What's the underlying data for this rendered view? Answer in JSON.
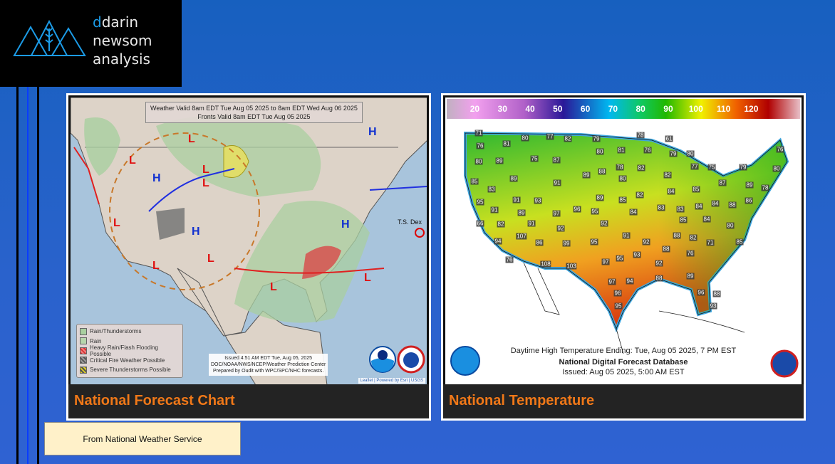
{
  "logo": {
    "line1": "darin",
    "line2": "newsom",
    "line3": "analysis",
    "accent": "#1c9be6"
  },
  "forecast": {
    "caption": "National Forecast Chart",
    "header_line1": "Weather Valid 8am EDT Tue Aug 05 2025 to 8am EDT Wed Aug 06 2025",
    "header_line2": "Fronts Valid 8am EDT Tue Aug 05 2025",
    "legend": [
      "Rain/Thunderstorms",
      "Rain",
      "Heavy Rain/Flash Flooding Possible",
      "Critical Fire Weather Possible",
      "Severe Thunderstorms Possible"
    ],
    "issued_line1": "Issued  4:51 AM EDT  Tue, Aug 05, 2025",
    "issued_line2": "DOC/NOAA/NWS/NCEP/Weather Prediction Center",
    "issued_line3": "Prepared by Oudit with WPC/SPC/NHC forecasts.",
    "attribution": "Leaflet | Powered by Esri | USGS",
    "storm_label": "T.S. Dex",
    "pressure_centers": [
      "L",
      "L",
      "L",
      "L",
      "L",
      "L",
      "L",
      "L",
      "L",
      "H",
      "H",
      "H",
      "H"
    ]
  },
  "temperature": {
    "caption": "National Temperature",
    "scale": [
      "20",
      "30",
      "40",
      "50",
      "60",
      "70",
      "80",
      "90",
      "100",
      "110",
      "120"
    ],
    "line1": "Daytime High Temperature Ending: Tue, Aug 05 2025, 7 PM EST",
    "line2": "National Digital Forecast Database",
    "line3": "Issued: Aug 05 2025, 5:00 AM EST",
    "values": [
      "71",
      "76",
      "80",
      "77",
      "82",
      "79",
      "78",
      "61",
      "81",
      "80",
      "81",
      "76",
      "79",
      "80",
      "80",
      "89",
      "75",
      "87",
      "78",
      "82",
      "77",
      "75",
      "79",
      "76",
      "80",
      "85",
      "89",
      "91",
      "89",
      "88",
      "80",
      "82",
      "87",
      "89",
      "83",
      "84",
      "85",
      "78",
      "95",
      "91",
      "93",
      "89",
      "85",
      "82",
      "84",
      "88",
      "86",
      "91",
      "89",
      "97",
      "96",
      "95",
      "84",
      "83",
      "83",
      "84",
      "66",
      "82",
      "91",
      "92",
      "92",
      "85",
      "84",
      "80",
      "107",
      "91",
      "88",
      "82",
      "94",
      "86",
      "99",
      "95",
      "92",
      "71",
      "85",
      "88",
      "76",
      "93",
      "76",
      "97",
      "95",
      "92",
      "108",
      "103",
      "89",
      "88",
      "97",
      "94",
      "96",
      "96",
      "88",
      "95",
      "93"
    ]
  },
  "source_note": "From National Weather Service"
}
